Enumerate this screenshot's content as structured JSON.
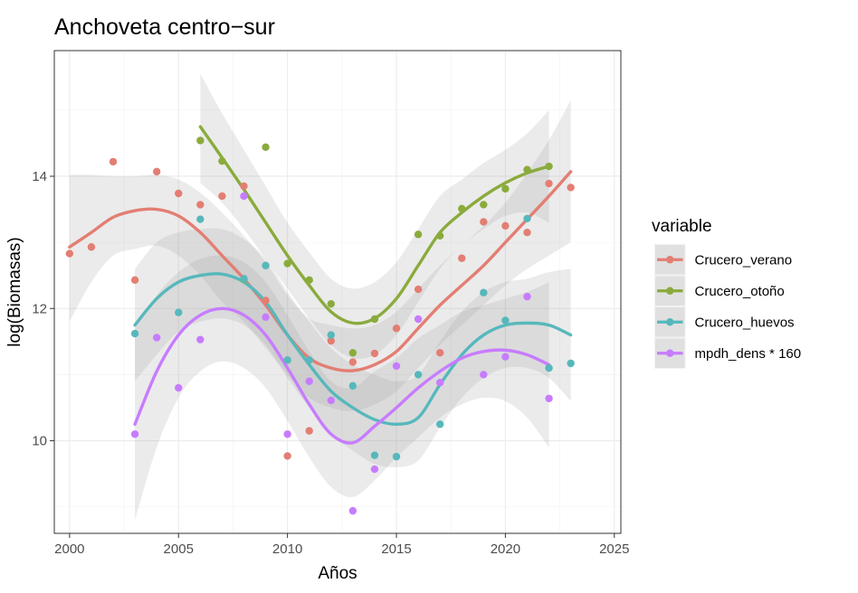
{
  "chart_data": {
    "type": "scatter",
    "title": "Anchoveta centro−sur",
    "xlabel": "Años",
    "ylabel": "log(Biomasas)",
    "xlim": [
      1999.3,
      2025.3
    ],
    "ylim": [
      8.6,
      15.9
    ],
    "x_ticks": [
      2000,
      2005,
      2010,
      2015,
      2020,
      2025
    ],
    "y_ticks": [
      10,
      12,
      14
    ],
    "grid": true,
    "legend_title": "variable",
    "legend_position": "right",
    "series": [
      {
        "name": "Crucero_verano",
        "color": "#E37E73",
        "points": [
          [
            2000,
            12.83
          ],
          [
            2001,
            12.93
          ],
          [
            2002,
            14.22
          ],
          [
            2003,
            12.43
          ],
          [
            2004,
            14.07
          ],
          [
            2005,
            13.74
          ],
          [
            2006,
            13.57
          ],
          [
            2007,
            13.7
          ],
          [
            2008,
            13.85
          ],
          [
            2009,
            12.12
          ],
          [
            2010,
            9.77
          ],
          [
            2011,
            10.15
          ],
          [
            2012,
            11.51
          ],
          [
            2013,
            11.19
          ],
          [
            2014,
            11.32
          ],
          [
            2015,
            11.7
          ],
          [
            2016,
            12.29
          ],
          [
            2017,
            11.33
          ],
          [
            2018,
            12.76
          ],
          [
            2019,
            13.31
          ],
          [
            2020,
            13.25
          ],
          [
            2021,
            13.15
          ],
          [
            2022,
            13.89
          ],
          [
            2023,
            13.83
          ]
        ],
        "smooth": [
          [
            2000,
            12.93
          ],
          [
            2001,
            13.15
          ],
          [
            2002,
            13.38
          ],
          [
            2003,
            13.48
          ],
          [
            2004,
            13.5
          ],
          [
            2005,
            13.4
          ],
          [
            2006,
            13.15
          ],
          [
            2007,
            12.8
          ],
          [
            2008,
            12.45
          ],
          [
            2009,
            12.05
          ],
          [
            2010,
            11.6
          ],
          [
            2011,
            11.25
          ],
          [
            2012,
            11.1
          ],
          [
            2013,
            11.06
          ],
          [
            2014,
            11.15
          ],
          [
            2015,
            11.35
          ],
          [
            2016,
            11.7
          ],
          [
            2017,
            12.05
          ],
          [
            2018,
            12.35
          ],
          [
            2019,
            12.65
          ],
          [
            2020,
            13.0
          ],
          [
            2021,
            13.35
          ],
          [
            2022,
            13.7
          ],
          [
            2023,
            14.07
          ]
        ],
        "ribbon": [
          [
            2000,
            11.8,
            14.02
          ],
          [
            2001,
            12.4,
            14.02
          ],
          [
            2002,
            12.8,
            14.0
          ],
          [
            2003,
            12.9,
            14.0
          ],
          [
            2004,
            12.95,
            14.02
          ],
          [
            2005,
            12.8,
            13.95
          ],
          [
            2006,
            12.5,
            13.75
          ],
          [
            2007,
            12.1,
            13.45
          ],
          [
            2008,
            11.8,
            13.1
          ],
          [
            2009,
            11.4,
            12.7
          ],
          [
            2010,
            11.0,
            12.2
          ],
          [
            2011,
            10.65,
            11.85
          ],
          [
            2012,
            10.5,
            11.75
          ],
          [
            2013,
            10.45,
            11.7
          ],
          [
            2014,
            10.55,
            11.75
          ],
          [
            2015,
            10.75,
            11.95
          ],
          [
            2016,
            11.1,
            12.3
          ],
          [
            2017,
            11.45,
            12.65
          ],
          [
            2018,
            11.75,
            12.95
          ],
          [
            2019,
            12.05,
            13.25
          ],
          [
            2020,
            12.35,
            13.6
          ],
          [
            2021,
            12.6,
            14.05
          ],
          [
            2022,
            12.8,
            14.55
          ],
          [
            2023,
            13.0,
            15.15
          ]
        ]
      },
      {
        "name": "Crucero_otoño",
        "color": "#8AAB3C",
        "points": [
          [
            2006,
            14.54
          ],
          [
            2007,
            14.23
          ],
          [
            2008,
            12.44
          ],
          [
            2009,
            14.44
          ],
          [
            2010,
            12.68
          ],
          [
            2011,
            12.43
          ],
          [
            2012,
            12.07
          ],
          [
            2013,
            11.33
          ],
          [
            2014,
            11.84
          ],
          [
            2016,
            13.12
          ],
          [
            2017,
            13.1
          ],
          [
            2018,
            13.51
          ],
          [
            2019,
            13.57
          ],
          [
            2020,
            13.81
          ],
          [
            2021,
            14.1
          ],
          [
            2022,
            14.15
          ]
        ],
        "smooth": [
          [
            2006,
            14.75
          ],
          [
            2007,
            14.28
          ],
          [
            2008,
            13.8
          ],
          [
            2009,
            13.3
          ],
          [
            2010,
            12.8
          ],
          [
            2011,
            12.35
          ],
          [
            2012,
            11.95
          ],
          [
            2013,
            11.78
          ],
          [
            2014,
            11.85
          ],
          [
            2015,
            12.15
          ],
          [
            2016,
            12.65
          ],
          [
            2017,
            13.15
          ],
          [
            2018,
            13.45
          ],
          [
            2019,
            13.7
          ],
          [
            2020,
            13.9
          ],
          [
            2021,
            14.05
          ],
          [
            2022,
            14.15
          ]
        ],
        "ribbon": [
          [
            2006,
            13.9,
            15.55
          ],
          [
            2007,
            13.6,
            14.95
          ],
          [
            2008,
            13.2,
            14.4
          ],
          [
            2009,
            12.75,
            13.85
          ],
          [
            2010,
            12.3,
            13.3
          ],
          [
            2011,
            11.85,
            12.85
          ],
          [
            2012,
            11.45,
            12.45
          ],
          [
            2013,
            11.25,
            12.3
          ],
          [
            2014,
            11.3,
            12.4
          ],
          [
            2015,
            11.6,
            12.7
          ],
          [
            2016,
            12.1,
            13.2
          ],
          [
            2017,
            12.6,
            13.7
          ],
          [
            2018,
            12.95,
            13.95
          ],
          [
            2019,
            13.2,
            14.2
          ],
          [
            2020,
            13.4,
            14.4
          ],
          [
            2021,
            13.45,
            14.65
          ],
          [
            2022,
            13.3,
            15.0
          ]
        ]
      },
      {
        "name": "Crucero_huevos",
        "color": "#56B8BC",
        "points": [
          [
            2003,
            11.62
          ],
          [
            2005,
            11.94
          ],
          [
            2006,
            13.35
          ],
          [
            2008,
            12.45
          ],
          [
            2009,
            12.65
          ],
          [
            2010,
            11.22
          ],
          [
            2011,
            11.22
          ],
          [
            2012,
            11.6
          ],
          [
            2013,
            10.83
          ],
          [
            2014,
            9.78
          ],
          [
            2015,
            9.76
          ],
          [
            2016,
            11.0
          ],
          [
            2017,
            10.25
          ],
          [
            2019,
            12.24
          ],
          [
            2020,
            11.82
          ],
          [
            2021,
            13.36
          ],
          [
            2022,
            11.1
          ],
          [
            2023,
            11.17
          ]
        ],
        "smooth": [
          [
            2003,
            11.75
          ],
          [
            2004,
            12.15
          ],
          [
            2005,
            12.4
          ],
          [
            2006,
            12.5
          ],
          [
            2007,
            12.52
          ],
          [
            2008,
            12.4
          ],
          [
            2009,
            12.1
          ],
          [
            2010,
            11.6
          ],
          [
            2011,
            11.15
          ],
          [
            2012,
            10.75
          ],
          [
            2013,
            10.5
          ],
          [
            2014,
            10.32
          ],
          [
            2015,
            10.25
          ],
          [
            2016,
            10.35
          ],
          [
            2017,
            10.85
          ],
          [
            2018,
            11.3
          ],
          [
            2019,
            11.6
          ],
          [
            2020,
            11.75
          ],
          [
            2021,
            11.78
          ],
          [
            2022,
            11.75
          ],
          [
            2023,
            11.6
          ]
        ],
        "ribbon": [
          [
            2003,
            10.9,
            12.6
          ],
          [
            2004,
            11.3,
            13.0
          ],
          [
            2005,
            11.65,
            13.15
          ],
          [
            2006,
            11.8,
            13.2
          ],
          [
            2007,
            11.85,
            13.2
          ],
          [
            2008,
            11.75,
            13.05
          ],
          [
            2009,
            11.45,
            12.75
          ],
          [
            2010,
            10.95,
            12.25
          ],
          [
            2011,
            10.5,
            11.8
          ],
          [
            2012,
            10.1,
            11.4
          ],
          [
            2013,
            9.85,
            11.15
          ],
          [
            2014,
            9.65,
            11.0
          ],
          [
            2015,
            9.6,
            10.9
          ],
          [
            2016,
            9.7,
            11.0
          ],
          [
            2017,
            10.2,
            11.5
          ],
          [
            2018,
            10.65,
            11.95
          ],
          [
            2019,
            10.95,
            12.25
          ],
          [
            2020,
            11.1,
            12.4
          ],
          [
            2021,
            11.1,
            12.45
          ],
          [
            2022,
            10.95,
            12.55
          ],
          [
            2023,
            10.6,
            12.6
          ]
        ]
      },
      {
        "name": "mpdh_dens * 160",
        "color": "#C77CFF",
        "points": [
          [
            2003,
            10.1
          ],
          [
            2004,
            11.56
          ],
          [
            2005,
            10.8
          ],
          [
            2006,
            11.53
          ],
          [
            2008,
            13.7
          ],
          [
            2009,
            11.87
          ],
          [
            2010,
            10.1
          ],
          [
            2011,
            10.9
          ],
          [
            2012,
            10.61
          ],
          [
            2013,
            8.94
          ],
          [
            2014,
            9.57
          ],
          [
            2015,
            11.13
          ],
          [
            2016,
            11.84
          ],
          [
            2017,
            10.88
          ],
          [
            2019,
            11.0
          ],
          [
            2020,
            11.27
          ],
          [
            2021,
            12.18
          ],
          [
            2022,
            10.64
          ]
        ],
        "smooth": [
          [
            2003,
            10.25
          ],
          [
            2004,
            11.05
          ],
          [
            2005,
            11.6
          ],
          [
            2006,
            11.9
          ],
          [
            2007,
            12.0
          ],
          [
            2008,
            11.9
          ],
          [
            2009,
            11.6
          ],
          [
            2010,
            11.1
          ],
          [
            2011,
            10.55
          ],
          [
            2012,
            10.1
          ],
          [
            2013,
            9.97
          ],
          [
            2014,
            10.22
          ],
          [
            2015,
            10.5
          ],
          [
            2016,
            10.8
          ],
          [
            2017,
            11.05
          ],
          [
            2018,
            11.25
          ],
          [
            2019,
            11.35
          ],
          [
            2020,
            11.37
          ],
          [
            2021,
            11.3
          ],
          [
            2022,
            11.15
          ]
        ],
        "ribbon": [
          [
            2003,
            8.8,
            11.7
          ],
          [
            2004,
            9.9,
            12.2
          ],
          [
            2005,
            10.65,
            12.55
          ],
          [
            2006,
            11.05,
            12.75
          ],
          [
            2007,
            11.2,
            12.8
          ],
          [
            2008,
            11.1,
            12.7
          ],
          [
            2009,
            10.8,
            12.4
          ],
          [
            2010,
            10.3,
            11.9
          ],
          [
            2011,
            9.75,
            11.35
          ],
          [
            2012,
            9.3,
            10.9
          ],
          [
            2013,
            9.15,
            10.8
          ],
          [
            2014,
            9.4,
            11.05
          ],
          [
            2015,
            9.75,
            11.25
          ],
          [
            2016,
            10.05,
            11.55
          ],
          [
            2017,
            10.35,
            11.75
          ],
          [
            2018,
            10.55,
            11.95
          ],
          [
            2019,
            10.65,
            12.05
          ],
          [
            2020,
            10.6,
            12.15
          ],
          [
            2021,
            10.35,
            12.25
          ],
          [
            2022,
            9.9,
            12.4
          ]
        ]
      }
    ]
  }
}
